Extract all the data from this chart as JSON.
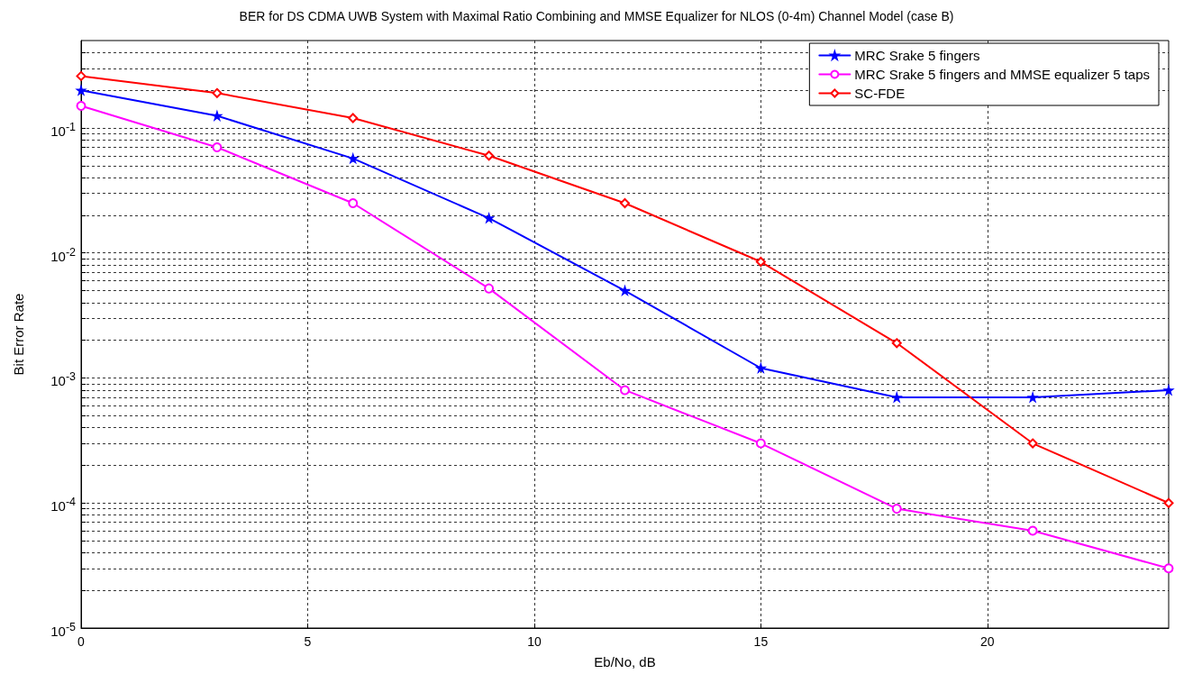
{
  "chart_data": {
    "type": "line",
    "title": "BER for DS CDMA UWB System with Maximal Ratio Combining and MMSE Equalizer for NLOS (0-4m) Channel Model (case B)",
    "xlabel": "Eb/No, dB",
    "ylabel": "Bit Error Rate",
    "x": [
      0,
      3,
      6,
      9,
      12,
      15,
      18,
      21,
      24
    ],
    "series": [
      {
        "name": "MRC Srake 5 fingers",
        "color": "#0000ff",
        "marker": "star",
        "values": [
          0.2,
          0.125,
          0.057,
          0.019,
          0.005,
          0.0012,
          0.0007,
          0.0007,
          0.0008
        ]
      },
      {
        "name": "MRC Srake 5 fingers and MMSE equalizer 5 taps",
        "color": "#ff00ff",
        "marker": "circle",
        "values": [
          0.15,
          0.07,
          0.025,
          0.0052,
          0.0008,
          0.0003,
          9e-05,
          6e-05,
          3e-05
        ]
      },
      {
        "name": "SC-FDE",
        "color": "#ff0000",
        "marker": "diamond",
        "values": [
          0.26,
          0.19,
          0.12,
          0.06,
          0.025,
          0.0085,
          0.0019,
          0.0003,
          0.0001
        ]
      }
    ],
    "log": "y",
    "xlim": [
      0,
      24
    ],
    "xticks": [
      0,
      5,
      10,
      15,
      20
    ],
    "ylim": [
      1e-05,
      0.5
    ],
    "yticks": [
      {
        "value": 1e-05,
        "label": "10$^{-5}$"
      },
      {
        "value": 2e-05,
        "label": null
      },
      {
        "value": 3e-05,
        "label": null
      },
      {
        "value": 4e-05,
        "label": null
      },
      {
        "value": 5e-05,
        "label": null
      },
      {
        "value": 6e-05,
        "label": null
      },
      {
        "value": 7e-05,
        "label": null
      },
      {
        "value": 8e-05,
        "label": null
      },
      {
        "value": 9e-05,
        "label": null
      },
      {
        "value": 0.0001,
        "label": "10$^{-4}$"
      },
      {
        "value": 0.0002,
        "label": null
      },
      {
        "value": 0.0003,
        "label": null
      },
      {
        "value": 0.0004,
        "label": null
      },
      {
        "value": 0.0005,
        "label": null
      },
      {
        "value": 0.0006,
        "label": null
      },
      {
        "value": 0.0007,
        "label": null
      },
      {
        "value": 0.0008,
        "label": null
      },
      {
        "value": 0.0009,
        "label": null
      },
      {
        "value": 0.001,
        "label": "10$^{-3}$"
      },
      {
        "value": 0.002,
        "label": null
      },
      {
        "value": 0.003,
        "label": null
      },
      {
        "value": 0.004,
        "label": null
      },
      {
        "value": 0.005,
        "label": null
      },
      {
        "value": 0.006,
        "label": null
      },
      {
        "value": 0.007,
        "label": null
      },
      {
        "value": 0.008,
        "label": null
      },
      {
        "value": 0.009,
        "label": null
      },
      {
        "value": 0.01,
        "label": "10$^{-2}$"
      },
      {
        "value": 0.02,
        "label": null
      },
      {
        "value": 0.03,
        "label": null
      },
      {
        "value": 0.04,
        "label": null
      },
      {
        "value": 0.05,
        "label": null
      },
      {
        "value": 0.06,
        "label": null
      },
      {
        "value": 0.07,
        "label": null
      },
      {
        "value": 0.08,
        "label": null
      },
      {
        "value": 0.09,
        "label": null
      },
      {
        "value": 0.1,
        "label": "10$^{-1}$"
      },
      {
        "value": 0.2,
        "label": null
      },
      {
        "value": 0.3,
        "label": null
      },
      {
        "value": 0.4,
        "label": null
      }
    ],
    "grid": true,
    "legend": "top right",
    "line_style": "solid"
  }
}
